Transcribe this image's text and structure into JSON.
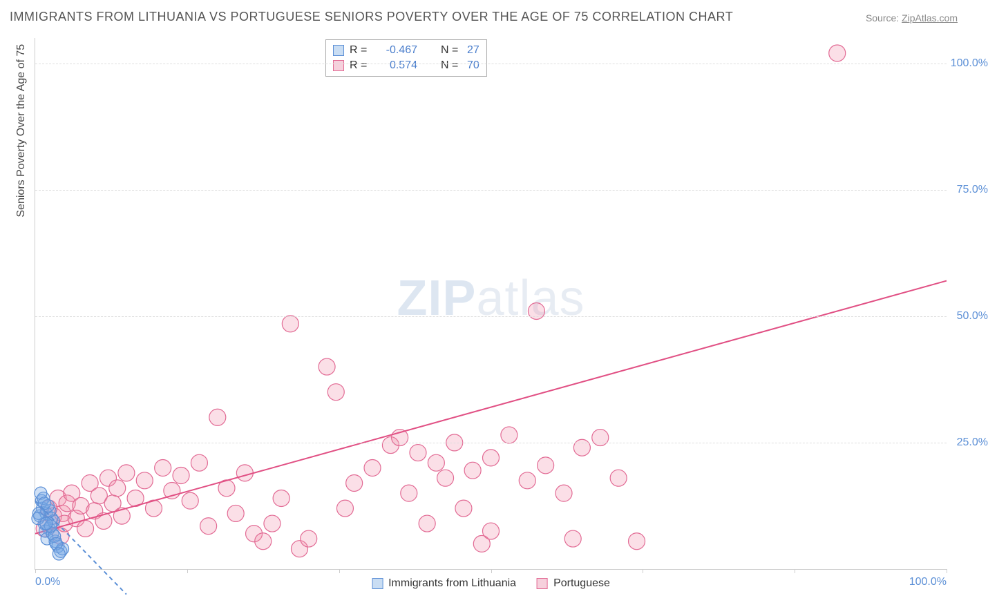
{
  "title": "IMMIGRANTS FROM LITHUANIA VS PORTUGUESE SENIORS POVERTY OVER THE AGE OF 75 CORRELATION CHART",
  "source_label": "Source:",
  "source_name": "ZipAtlas.com",
  "ylabel": "Seniors Poverty Over the Age of 75",
  "watermark_a": "ZIP",
  "watermark_b": "atlas",
  "xlim": [
    0,
    100
  ],
  "ylim": [
    0,
    105
  ],
  "yticks": [
    25,
    50,
    75,
    100
  ],
  "ytick_labels": [
    "25.0%",
    "50.0%",
    "75.0%",
    "100.0%"
  ],
  "xticks": [
    0,
    16.67,
    33.33,
    50,
    66.67,
    83.33,
    100
  ],
  "xtick_labels_shown": {
    "0": "0.0%",
    "100": "100.0%"
  },
  "grid_color": "#dddddd",
  "axis_color": "#cccccc",
  "background_color": "#ffffff",
  "series": {
    "blue": {
      "name": "Immigrants from Lithuania",
      "R": "-0.467",
      "N": "27",
      "marker_fill": "rgba(120,170,230,0.35)",
      "marker_stroke": "#5b8fd6",
      "marker_radius": 9,
      "line_color": "#5b8fd6",
      "line_dash": "6,5",
      "swatch_fill": "#c9ddf3",
      "swatch_border": "#5b8fd6",
      "points": [
        [
          0.5,
          10.5
        ],
        [
          0.8,
          12.0
        ],
        [
          1.0,
          9.0
        ],
        [
          1.2,
          11.0
        ],
        [
          0.7,
          13.5
        ],
        [
          1.5,
          8.0
        ],
        [
          1.8,
          10.0
        ],
        [
          0.9,
          14.0
        ],
        [
          1.1,
          7.5
        ],
        [
          2.0,
          9.5
        ],
        [
          1.3,
          6.0
        ],
        [
          1.6,
          11.5
        ],
        [
          2.2,
          5.5
        ],
        [
          0.6,
          15.0
        ],
        [
          1.9,
          7.0
        ],
        [
          2.5,
          4.5
        ],
        [
          1.4,
          12.5
        ],
        [
          2.1,
          6.5
        ],
        [
          0.4,
          11.0
        ],
        [
          2.8,
          3.5
        ],
        [
          1.7,
          8.5
        ],
        [
          3.0,
          4.0
        ],
        [
          2.3,
          5.0
        ],
        [
          1.0,
          13.0
        ],
        [
          0.3,
          10.0
        ],
        [
          2.6,
          3.0
        ],
        [
          1.2,
          9.0
        ]
      ],
      "trend": {
        "x1": 0,
        "y1": 13.5,
        "x2": 10,
        "y2": -5
      }
    },
    "pink": {
      "name": "Portuguese",
      "R": "0.574",
      "N": "70",
      "marker_fill": "rgba(240,140,170,0.28)",
      "marker_stroke": "#e26a94",
      "marker_radius": 12,
      "line_color": "#e15084",
      "line_dash": "",
      "swatch_fill": "#f6d0dc",
      "swatch_border": "#e26a94",
      "points": [
        [
          1.0,
          8.0
        ],
        [
          1.5,
          12.0
        ],
        [
          2.0,
          10.5
        ],
        [
          2.5,
          14.0
        ],
        [
          2.8,
          6.5
        ],
        [
          3.0,
          11.0
        ],
        [
          3.2,
          9.0
        ],
        [
          3.5,
          13.0
        ],
        [
          4.0,
          15.0
        ],
        [
          4.5,
          10.0
        ],
        [
          5.0,
          12.5
        ],
        [
          5.5,
          8.0
        ],
        [
          6.0,
          17.0
        ],
        [
          6.5,
          11.5
        ],
        [
          7.0,
          14.5
        ],
        [
          7.5,
          9.5
        ],
        [
          8.0,
          18.0
        ],
        [
          8.5,
          13.0
        ],
        [
          9.0,
          16.0
        ],
        [
          9.5,
          10.5
        ],
        [
          10.0,
          19.0
        ],
        [
          11.0,
          14.0
        ],
        [
          12.0,
          17.5
        ],
        [
          13.0,
          12.0
        ],
        [
          14.0,
          20.0
        ],
        [
          15.0,
          15.5
        ],
        [
          16.0,
          18.5
        ],
        [
          17.0,
          13.5
        ],
        [
          18.0,
          21.0
        ],
        [
          19.0,
          8.5
        ],
        [
          20.0,
          30.0
        ],
        [
          21.0,
          16.0
        ],
        [
          22.0,
          11.0
        ],
        [
          23.0,
          19.0
        ],
        [
          24.0,
          7.0
        ],
        [
          25.0,
          5.5
        ],
        [
          26.0,
          9.0
        ],
        [
          27.0,
          14.0
        ],
        [
          28.0,
          48.5
        ],
        [
          29.0,
          4.0
        ],
        [
          30.0,
          6.0
        ],
        [
          32.0,
          40.0
        ],
        [
          33.0,
          35.0
        ],
        [
          34.0,
          12.0
        ],
        [
          35.0,
          17.0
        ],
        [
          37.0,
          20.0
        ],
        [
          39.0,
          24.5
        ],
        [
          40.0,
          26.0
        ],
        [
          41.0,
          15.0
        ],
        [
          42.0,
          23.0
        ],
        [
          43.0,
          9.0
        ],
        [
          44.0,
          21.0
        ],
        [
          45.0,
          18.0
        ],
        [
          46.0,
          25.0
        ],
        [
          47.0,
          12.0
        ],
        [
          48.0,
          19.5
        ],
        [
          49.0,
          5.0
        ],
        [
          50.0,
          22.0
        ],
        [
          52.0,
          26.5
        ],
        [
          54.0,
          17.5
        ],
        [
          55.0,
          51.0
        ],
        [
          56.0,
          20.5
        ],
        [
          58.0,
          15.0
        ],
        [
          59.0,
          6.0
        ],
        [
          60.0,
          24.0
        ],
        [
          62.0,
          26.0
        ],
        [
          64.0,
          18.0
        ],
        [
          66.0,
          5.5
        ],
        [
          88.0,
          102.0
        ],
        [
          50.0,
          7.5
        ]
      ],
      "trend": {
        "x1": 0,
        "y1": 7.0,
        "x2": 100,
        "y2": 57.0
      }
    }
  },
  "legend_top_labels": {
    "R": "R =",
    "N": "N ="
  },
  "legend_bottom_order": [
    "blue",
    "pink"
  ]
}
